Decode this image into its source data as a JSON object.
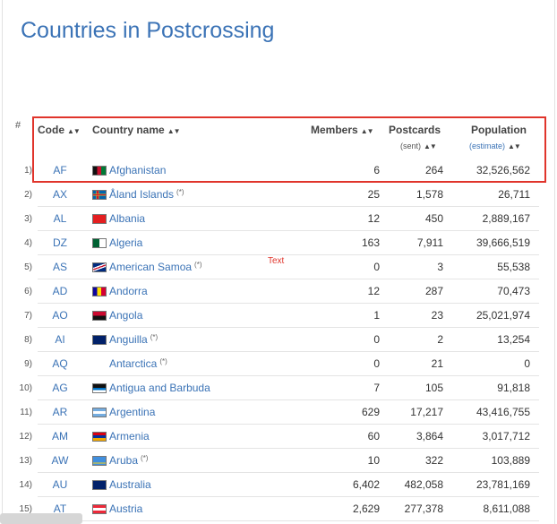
{
  "page": {
    "title": "Countries in Postcrossing"
  },
  "table": {
    "hash_header": "#",
    "headers": {
      "code": "Code",
      "country": "Country name",
      "members": "Members",
      "postcards": "Postcards",
      "postcards_sub": "(sent)",
      "population": "Population",
      "population_sub": "(estimate)",
      "sort_glyph": "▲▼"
    },
    "rows": [
      {
        "idx": "1)",
        "code": "AF",
        "name": "Afghanistan",
        "star": "",
        "members": "6",
        "postcards": "264",
        "population": "32,526,562",
        "flag": "af"
      },
      {
        "idx": "2)",
        "code": "AX",
        "name": "Åland Islands",
        "star": "(*)",
        "members": "25",
        "postcards": "1,578",
        "population": "26,711",
        "flag": "ax"
      },
      {
        "idx": "3)",
        "code": "AL",
        "name": "Albania",
        "star": "",
        "members": "12",
        "postcards": "450",
        "population": "2,889,167",
        "flag": "al"
      },
      {
        "idx": "4)",
        "code": "DZ",
        "name": "Algeria",
        "star": "",
        "members": "163",
        "postcards": "7,911",
        "population": "39,666,519",
        "flag": "dz"
      },
      {
        "idx": "5)",
        "code": "AS",
        "name": "American Samoa",
        "star": "(*)",
        "members": "0",
        "postcards": "3",
        "population": "55,538",
        "flag": "as"
      },
      {
        "idx": "6)",
        "code": "AD",
        "name": "Andorra",
        "star": "",
        "members": "12",
        "postcards": "287",
        "population": "70,473",
        "flag": "ad"
      },
      {
        "idx": "7)",
        "code": "AO",
        "name": "Angola",
        "star": "",
        "members": "1",
        "postcards": "23",
        "population": "25,021,974",
        "flag": "ao"
      },
      {
        "idx": "8)",
        "code": "AI",
        "name": "Anguilla",
        "star": "(*)",
        "members": "0",
        "postcards": "2",
        "population": "13,254",
        "flag": "ai"
      },
      {
        "idx": "9)",
        "code": "AQ",
        "name": "Antarctica",
        "star": "(*)",
        "members": "0",
        "postcards": "21",
        "population": "0",
        "flag": ""
      },
      {
        "idx": "10)",
        "code": "AG",
        "name": "Antigua and Barbuda",
        "star": "",
        "members": "7",
        "postcards": "105",
        "population": "91,818",
        "flag": "ag"
      },
      {
        "idx": "11)",
        "code": "AR",
        "name": "Argentina",
        "star": "",
        "members": "629",
        "postcards": "17,217",
        "population": "43,416,755",
        "flag": "ar"
      },
      {
        "idx": "12)",
        "code": "AM",
        "name": "Armenia",
        "star": "",
        "members": "60",
        "postcards": "3,864",
        "population": "3,017,712",
        "flag": "am"
      },
      {
        "idx": "13)",
        "code": "AW",
        "name": "Aruba",
        "star": "(*)",
        "members": "10",
        "postcards": "322",
        "population": "103,889",
        "flag": "aw"
      },
      {
        "idx": "14)",
        "code": "AU",
        "name": "Australia",
        "star": "",
        "members": "6,402",
        "postcards": "482,058",
        "population": "23,781,169",
        "flag": "au"
      },
      {
        "idx": "15)",
        "code": "AT",
        "name": "Austria",
        "star": "",
        "members": "2,629",
        "postcards": "277,378",
        "population": "8,611,088",
        "flag": "at"
      }
    ]
  },
  "annotation": {
    "text": "Text",
    "color": "#e0342b"
  },
  "colors": {
    "link": "#3b73b6",
    "highlight": "#e0342b"
  }
}
